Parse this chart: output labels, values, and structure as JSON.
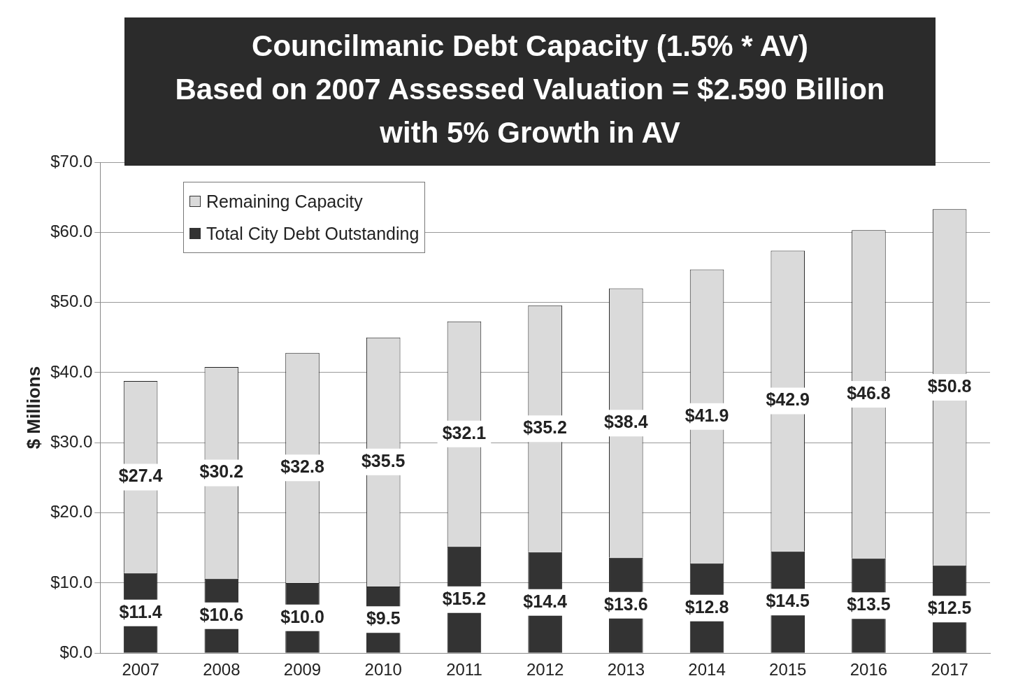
{
  "chart_data": {
    "type": "bar",
    "title": "Councilmanic Debt Capacity (1.5% * AV)\nBased on 2007 Assessed Valuation = $2.590 Billion\nwith 5% Growth in AV",
    "ylabel": "$ Millions",
    "categories": [
      "2007",
      "2008",
      "2009",
      "2010",
      "2011",
      "2012",
      "2013",
      "2014",
      "2015",
      "2016",
      "2017"
    ],
    "stacked": true,
    "series": [
      {
        "name": "Total City Debt Outstanding",
        "color": "#333333",
        "values": [
          11.4,
          10.6,
          10.0,
          9.5,
          15.2,
          14.4,
          13.6,
          12.8,
          14.5,
          13.5,
          12.5
        ],
        "value_labels": [
          "$11.4",
          "$10.6",
          "$10.0",
          "$9.5",
          "$15.2",
          "$14.4",
          "$13.6",
          "$12.8",
          "$14.5",
          "$13.5",
          "$12.5"
        ]
      },
      {
        "name": "Remaining Capacity",
        "color": "#dadada",
        "values": [
          27.4,
          30.2,
          32.8,
          35.5,
          32.1,
          35.2,
          38.4,
          41.9,
          42.9,
          46.8,
          50.8
        ],
        "value_labels": [
          "$27.4",
          "$30.2",
          "$32.8",
          "$35.5",
          "$32.1",
          "$35.2",
          "$38.4",
          "$41.9",
          "$42.9",
          "$46.8",
          "$50.8"
        ]
      }
    ],
    "ylim": [
      0,
      70
    ],
    "yticks": [
      {
        "value": 0,
        "label": "$0.0"
      },
      {
        "value": 10,
        "label": "$10.0"
      },
      {
        "value": 20,
        "label": "$20.0"
      },
      {
        "value": 30,
        "label": "$30.0"
      },
      {
        "value": 40,
        "label": "$40.0"
      },
      {
        "value": 50,
        "label": "$50.0"
      },
      {
        "value": 60,
        "label": "$60.0"
      },
      {
        "value": 70,
        "label": "$70.0"
      }
    ],
    "grid": "y",
    "legend": "top left"
  }
}
